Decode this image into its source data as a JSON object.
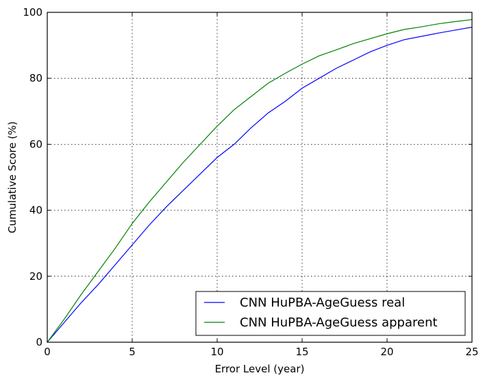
{
  "chart_data": {
    "type": "line",
    "title": "",
    "xlabel": "Error Level (year)",
    "ylabel": "Cumulative Score (%)",
    "xlim": [
      0,
      25
    ],
    "ylim": [
      0,
      100
    ],
    "xticks": [
      0,
      5,
      10,
      15,
      20,
      25
    ],
    "yticks": [
      0,
      20,
      40,
      60,
      80,
      100
    ],
    "grid": true,
    "legend_position": "lower-right",
    "series": [
      {
        "name": "CNN HuPBA-AgeGuess real",
        "color": "#0000ff",
        "x": [
          0,
          1,
          2,
          3,
          4,
          5,
          6,
          7,
          8,
          9,
          10,
          11,
          12,
          13,
          14,
          15,
          16,
          17,
          18,
          19,
          20,
          21,
          22,
          23,
          24,
          25
        ],
        "y": [
          0,
          6,
          12,
          17.5,
          23.5,
          29.5,
          35.5,
          41,
          46,
          51,
          56,
          60,
          65,
          69.5,
          73,
          77,
          80,
          83,
          85.5,
          88,
          90,
          91.7,
          92.7,
          93.7,
          94.6,
          95.5
        ]
      },
      {
        "name": "CNN HuPBA-AgeGuess apparent",
        "color": "#008000",
        "x": [
          0,
          1,
          2,
          3,
          4,
          5,
          6,
          7,
          8,
          9,
          10,
          11,
          12,
          13,
          14,
          15,
          16,
          17,
          18,
          19,
          20,
          21,
          22,
          23,
          24,
          25
        ],
        "y": [
          0,
          7,
          14.5,
          21.5,
          28.5,
          36,
          42.5,
          48.5,
          54.5,
          60,
          65.5,
          70.5,
          74.5,
          78.5,
          81.5,
          84.3,
          86.8,
          88.6,
          90.5,
          92,
          93.5,
          94.8,
          95.6,
          96.5,
          97.2,
          97.8
        ]
      }
    ]
  }
}
